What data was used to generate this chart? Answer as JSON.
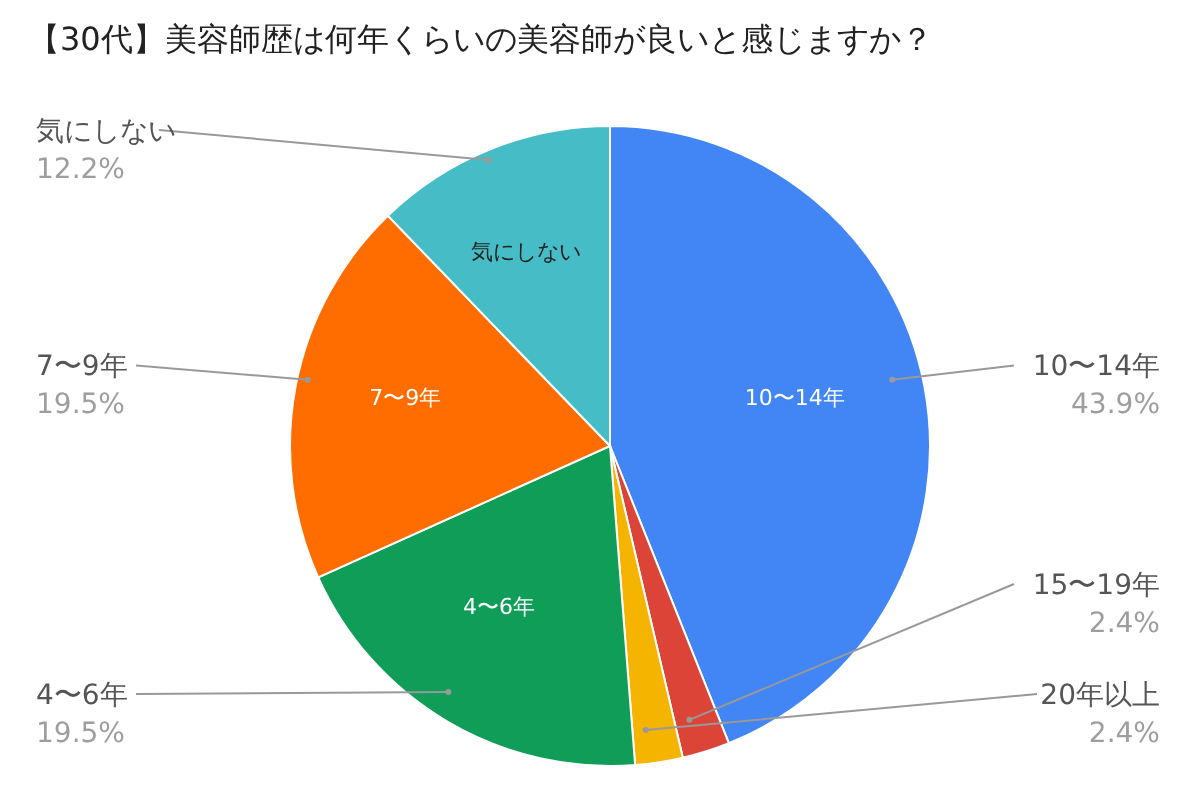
{
  "chart_data": {
    "type": "pie",
    "title": "【30代】美容師歴は何年くらいの美容師が良いと感じますか？",
    "categories": [
      "10〜14年",
      "15〜19年",
      "20年以上",
      "4〜6年",
      "7〜9年",
      "気にしない"
    ],
    "values": [
      43.9,
      2.4,
      2.4,
      19.5,
      19.5,
      12.2
    ],
    "value_labels": [
      "43.9%",
      "2.4%",
      "2.4%",
      "19.5%",
      "19.5%",
      "12.2%"
    ],
    "colors": [
      "#4285f4",
      "#db4437",
      "#f4b400",
      "#0f9d58",
      "#ff6d00",
      "#46bdc6"
    ],
    "legend": false
  }
}
